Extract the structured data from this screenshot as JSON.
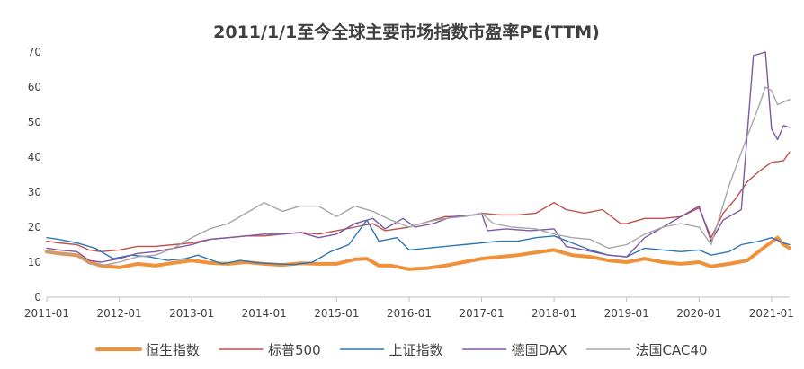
{
  "chart_data": {
    "type": "line",
    "title": "2011/1/1至今全球主要市场指数市盈率PE(TTM)",
    "xlabel": "",
    "ylabel": "",
    "ylim": [
      0,
      70
    ],
    "yticks": [
      0,
      10,
      20,
      30,
      40,
      50,
      60,
      70
    ],
    "xlim": [
      "2011-01",
      "2021-04"
    ],
    "xticks": [
      "2011-01",
      "2012-01",
      "2013-01",
      "2014-01",
      "2015-01",
      "2016-01",
      "2017-01",
      "2018-01",
      "2019-01",
      "2020-01",
      "2021-01"
    ],
    "grid": false,
    "legend": "bottom",
    "series": [
      {
        "name": "恒生指数",
        "color": "#F0913A",
        "width": 4,
        "points": [
          [
            "2011-01",
            13.0
          ],
          [
            "2011-03",
            12.5
          ],
          [
            "2011-06",
            12.0
          ],
          [
            "2011-08",
            10.0
          ],
          [
            "2011-10",
            9.0
          ],
          [
            "2012-01",
            8.5
          ],
          [
            "2012-04",
            9.5
          ],
          [
            "2012-07",
            9.0
          ],
          [
            "2012-10",
            9.8
          ],
          [
            "2013-01",
            10.5
          ],
          [
            "2013-04",
            9.8
          ],
          [
            "2013-07",
            9.5
          ],
          [
            "2013-10",
            10.0
          ],
          [
            "2014-01",
            9.5
          ],
          [
            "2014-04",
            9.2
          ],
          [
            "2014-07",
            9.7
          ],
          [
            "2014-10",
            9.5
          ],
          [
            "2015-01",
            9.5
          ],
          [
            "2015-04",
            10.8
          ],
          [
            "2015-06",
            11.0
          ],
          [
            "2015-08",
            9.0
          ],
          [
            "2015-10",
            9.0
          ],
          [
            "2016-01",
            8.0
          ],
          [
            "2016-04",
            8.3
          ],
          [
            "2016-07",
            9.0
          ],
          [
            "2016-10",
            10.0
          ],
          [
            "2017-01",
            11.0
          ],
          [
            "2017-04",
            11.5
          ],
          [
            "2017-07",
            12.0
          ],
          [
            "2017-10",
            12.8
          ],
          [
            "2018-01",
            13.5
          ],
          [
            "2018-04",
            12.0
          ],
          [
            "2018-07",
            11.5
          ],
          [
            "2018-10",
            10.5
          ],
          [
            "2019-01",
            10.0
          ],
          [
            "2019-04",
            11.0
          ],
          [
            "2019-07",
            10.0
          ],
          [
            "2019-10",
            9.5
          ],
          [
            "2020-01",
            10.0
          ],
          [
            "2020-03",
            8.8
          ],
          [
            "2020-06",
            9.5
          ],
          [
            "2020-09",
            10.5
          ],
          [
            "2020-12",
            14.5
          ],
          [
            "2021-02",
            17.0
          ],
          [
            "2021-03",
            15.0
          ],
          [
            "2021-04",
            14.0
          ]
        ]
      },
      {
        "name": "标普500",
        "color": "#C0504D",
        "width": 1.4,
        "points": [
          [
            "2011-01",
            16.0
          ],
          [
            "2011-03",
            15.5
          ],
          [
            "2011-06",
            15.0
          ],
          [
            "2011-08",
            13.5
          ],
          [
            "2011-10",
            13.0
          ],
          [
            "2012-01",
            13.5
          ],
          [
            "2012-04",
            14.5
          ],
          [
            "2012-07",
            14.5
          ],
          [
            "2012-10",
            15.0
          ],
          [
            "2013-01",
            15.5
          ],
          [
            "2013-04",
            16.5
          ],
          [
            "2013-07",
            17.0
          ],
          [
            "2013-10",
            17.5
          ],
          [
            "2014-01",
            17.5
          ],
          [
            "2014-04",
            18.0
          ],
          [
            "2014-07",
            18.5
          ],
          [
            "2014-10",
            18.0
          ],
          [
            "2015-01",
            19.0
          ],
          [
            "2015-04",
            20.0
          ],
          [
            "2015-07",
            21.0
          ],
          [
            "2015-09",
            19.0
          ],
          [
            "2016-01",
            20.0
          ],
          [
            "2016-04",
            21.5
          ],
          [
            "2016-07",
            23.0
          ],
          [
            "2016-10",
            23.0
          ],
          [
            "2017-01",
            24.0
          ],
          [
            "2017-04",
            23.5
          ],
          [
            "2017-07",
            23.5
          ],
          [
            "2017-10",
            24.0
          ],
          [
            "2018-01",
            27.0
          ],
          [
            "2018-03",
            25.0
          ],
          [
            "2018-06",
            24.0
          ],
          [
            "2018-09",
            25.0
          ],
          [
            "2018-12",
            21.0
          ],
          [
            "2019-01",
            21.0
          ],
          [
            "2019-04",
            22.5
          ],
          [
            "2019-07",
            22.5
          ],
          [
            "2019-10",
            23.0
          ],
          [
            "2020-01",
            25.5
          ],
          [
            "2020-03",
            17.0
          ],
          [
            "2020-05",
            24.0
          ],
          [
            "2020-07",
            28.0
          ],
          [
            "2020-09",
            33.0
          ],
          [
            "2020-11",
            36.0
          ],
          [
            "2021-01",
            38.5
          ],
          [
            "2021-03",
            39.0
          ],
          [
            "2021-04",
            41.5
          ]
        ]
      },
      {
        "name": "上证指数",
        "color": "#2E75B6",
        "width": 1.4,
        "points": [
          [
            "2011-01",
            17.0
          ],
          [
            "2011-03",
            16.5
          ],
          [
            "2011-06",
            15.5
          ],
          [
            "2011-09",
            14.0
          ],
          [
            "2011-12",
            11.0
          ],
          [
            "2012-03",
            12.0
          ],
          [
            "2012-06",
            11.5
          ],
          [
            "2012-09",
            10.5
          ],
          [
            "2012-12",
            11.0
          ],
          [
            "2013-02",
            12.0
          ],
          [
            "2013-06",
            9.5
          ],
          [
            "2013-09",
            10.5
          ],
          [
            "2013-12",
            9.8
          ],
          [
            "2014-03",
            9.5
          ],
          [
            "2014-06",
            9.3
          ],
          [
            "2014-09",
            10.0
          ],
          [
            "2014-12",
            13.0
          ],
          [
            "2015-03",
            15.0
          ],
          [
            "2015-06",
            22.0
          ],
          [
            "2015-08",
            16.0
          ],
          [
            "2015-11",
            17.0
          ],
          [
            "2016-01",
            13.5
          ],
          [
            "2016-04",
            14.0
          ],
          [
            "2016-07",
            14.5
          ],
          [
            "2016-10",
            15.0
          ],
          [
            "2017-01",
            15.5
          ],
          [
            "2017-04",
            16.0
          ],
          [
            "2017-07",
            16.0
          ],
          [
            "2017-10",
            17.0
          ],
          [
            "2018-01",
            17.5
          ],
          [
            "2018-04",
            15.5
          ],
          [
            "2018-07",
            13.5
          ],
          [
            "2018-10",
            12.0
          ],
          [
            "2019-01",
            11.5
          ],
          [
            "2019-04",
            14.0
          ],
          [
            "2019-07",
            13.5
          ],
          [
            "2019-10",
            13.0
          ],
          [
            "2020-01",
            13.5
          ],
          [
            "2020-03",
            12.0
          ],
          [
            "2020-06",
            13.0
          ],
          [
            "2020-08",
            15.0
          ],
          [
            "2020-11",
            16.0
          ],
          [
            "2021-01",
            17.0
          ],
          [
            "2021-03",
            15.5
          ],
          [
            "2021-04",
            15.0
          ]
        ]
      },
      {
        "name": "德国DAX",
        "color": "#7E57A6",
        "width": 1.4,
        "points": [
          [
            "2011-01",
            14.0
          ],
          [
            "2011-03",
            13.5
          ],
          [
            "2011-06",
            13.0
          ],
          [
            "2011-08",
            10.5
          ],
          [
            "2011-10",
            10.0
          ],
          [
            "2012-01",
            11.0
          ],
          [
            "2012-04",
            12.5
          ],
          [
            "2012-07",
            13.0
          ],
          [
            "2012-10",
            14.0
          ],
          [
            "2013-01",
            15.0
          ],
          [
            "2013-04",
            16.5
          ],
          [
            "2013-07",
            17.0
          ],
          [
            "2013-10",
            17.5
          ],
          [
            "2014-01",
            18.0
          ],
          [
            "2014-04",
            18.0
          ],
          [
            "2014-07",
            18.5
          ],
          [
            "2014-10",
            17.0
          ],
          [
            "2015-01",
            18.0
          ],
          [
            "2015-04",
            21.0
          ],
          [
            "2015-07",
            22.5
          ],
          [
            "2015-09",
            19.5
          ],
          [
            "2015-12",
            22.5
          ],
          [
            "2016-02",
            20.0
          ],
          [
            "2016-05",
            21.0
          ],
          [
            "2016-08",
            23.0
          ],
          [
            "2016-12",
            23.5
          ],
          [
            "2017-01",
            24.0
          ],
          [
            "2017-02",
            19.0
          ],
          [
            "2017-05",
            19.5
          ],
          [
            "2017-09",
            19.0
          ],
          [
            "2018-01",
            19.5
          ],
          [
            "2018-03",
            14.5
          ],
          [
            "2018-06",
            13.5
          ],
          [
            "2018-10",
            12.0
          ],
          [
            "2019-01",
            11.5
          ],
          [
            "2019-04",
            17.0
          ],
          [
            "2019-07",
            20.0
          ],
          [
            "2019-10",
            23.0
          ],
          [
            "2020-01",
            26.0
          ],
          [
            "2020-03",
            16.0
          ],
          [
            "2020-05",
            22.0
          ],
          [
            "2020-08",
            25.0
          ],
          [
            "2020-10",
            69.0
          ],
          [
            "2020-12",
            70.0
          ],
          [
            "2021-01",
            48.0
          ],
          [
            "2021-02",
            45.0
          ],
          [
            "2021-03",
            49.0
          ],
          [
            "2021-04",
            48.5
          ]
        ]
      },
      {
        "name": "法国CAC40",
        "color": "#A6A6A6",
        "width": 1.4,
        "points": [
          [
            "2011-01",
            13.0
          ],
          [
            "2011-03",
            12.5
          ],
          [
            "2011-06",
            12.0
          ],
          [
            "2011-08",
            9.5
          ],
          [
            "2011-10",
            9.0
          ],
          [
            "2012-01",
            10.0
          ],
          [
            "2012-04",
            11.5
          ],
          [
            "2012-07",
            12.0
          ],
          [
            "2012-10",
            14.0
          ],
          [
            "2013-01",
            17.0
          ],
          [
            "2013-04",
            19.5
          ],
          [
            "2013-07",
            21.0
          ],
          [
            "2013-10",
            24.0
          ],
          [
            "2014-01",
            27.0
          ],
          [
            "2014-04",
            24.5
          ],
          [
            "2014-07",
            26.0
          ],
          [
            "2014-10",
            26.0
          ],
          [
            "2015-01",
            23.0
          ],
          [
            "2015-04",
            26.0
          ],
          [
            "2015-07",
            24.5
          ],
          [
            "2015-10",
            22.0
          ],
          [
            "2016-01",
            20.0
          ],
          [
            "2016-04",
            21.5
          ],
          [
            "2016-07",
            22.5
          ],
          [
            "2016-10",
            23.0
          ],
          [
            "2017-01",
            24.0
          ],
          [
            "2017-03",
            21.0
          ],
          [
            "2017-06",
            20.0
          ],
          [
            "2017-10",
            19.5
          ],
          [
            "2018-01",
            18.0
          ],
          [
            "2018-04",
            17.0
          ],
          [
            "2018-07",
            16.5
          ],
          [
            "2018-10",
            14.0
          ],
          [
            "2019-01",
            15.0
          ],
          [
            "2019-04",
            18.0
          ],
          [
            "2019-07",
            20.0
          ],
          [
            "2019-10",
            21.0
          ],
          [
            "2020-01",
            20.0
          ],
          [
            "2020-03",
            15.0
          ],
          [
            "2020-06",
            32.0
          ],
          [
            "2020-09",
            46.0
          ],
          [
            "2020-11",
            55.0
          ],
          [
            "2020-12",
            60.0
          ],
          [
            "2021-01",
            59.0
          ],
          [
            "2021-02",
            55.0
          ],
          [
            "2021-04",
            56.5
          ]
        ]
      }
    ]
  }
}
